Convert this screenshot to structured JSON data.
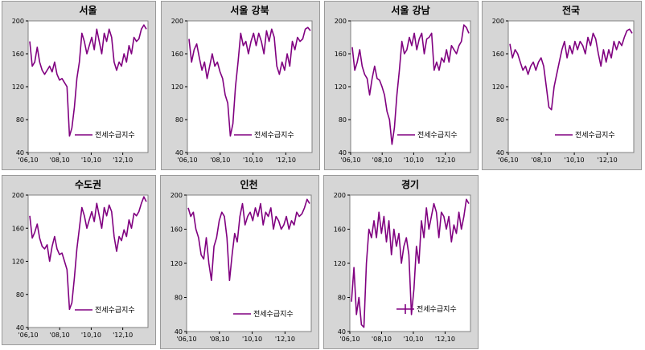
{
  "page": {
    "legend_label": "전세수급지수",
    "series_color": "#800080",
    "background_color": "#d6d6d6"
  },
  "chart_data": [
    {
      "type": "line",
      "title": "서울",
      "ylim": [
        40,
        200
      ],
      "yticks": [
        40,
        80,
        120,
        160,
        200
      ],
      "xticks": [
        "'06,10",
        "'08,10",
        "'10,10",
        "'12,10"
      ],
      "legend": "전세수급지수",
      "legend_marker": "line",
      "series": [
        {
          "name": "전세수급지수",
          "values": [
            175,
            145,
            150,
            168,
            150,
            140,
            135,
            140,
            145,
            138,
            150,
            135,
            128,
            130,
            125,
            120,
            60,
            70,
            95,
            130,
            150,
            185,
            175,
            160,
            170,
            180,
            165,
            190,
            175,
            160,
            185,
            175,
            190,
            180,
            150,
            140,
            150,
            145,
            160,
            150,
            170,
            160,
            180,
            175,
            178,
            190,
            195,
            190
          ]
        }
      ]
    },
    {
      "type": "line",
      "title": "서울 강북",
      "ylim": [
        40,
        200
      ],
      "yticks": [
        40,
        80,
        120,
        160,
        200
      ],
      "xticks": [
        "'06,10",
        "'08,10",
        "'10,10",
        "'12,10"
      ],
      "legend": "전세수급지수",
      "legend_marker": "line",
      "series": [
        {
          "name": "전세수급지수",
          "values": [
            178,
            150,
            165,
            172,
            155,
            140,
            150,
            130,
            145,
            160,
            145,
            150,
            138,
            130,
            110,
            100,
            60,
            75,
            120,
            150,
            185,
            170,
            175,
            160,
            175,
            185,
            170,
            185,
            175,
            160,
            188,
            175,
            190,
            180,
            145,
            135,
            150,
            140,
            160,
            145,
            175,
            165,
            180,
            175,
            178,
            190,
            192,
            188
          ]
        }
      ]
    },
    {
      "type": "line",
      "title": "서울 강남",
      "ylim": [
        40,
        200
      ],
      "yticks": [
        40,
        80,
        120,
        160,
        200
      ],
      "xticks": [
        "'06,10",
        "'08,10",
        "'10,10",
        "'12,10"
      ],
      "legend": "전세수급지수",
      "legend_marker": "line",
      "series": [
        {
          "name": "전세수급지수",
          "values": [
            168,
            140,
            150,
            165,
            145,
            135,
            130,
            110,
            130,
            145,
            130,
            128,
            120,
            110,
            90,
            80,
            50,
            70,
            110,
            140,
            175,
            160,
            165,
            180,
            170,
            185,
            165,
            178,
            185,
            160,
            178,
            180,
            185,
            140,
            150,
            140,
            155,
            150,
            165,
            150,
            170,
            165,
            160,
            170,
            175,
            195,
            192,
            185
          ]
        }
      ]
    },
    {
      "type": "line",
      "title": "전국",
      "ylim": [
        40,
        200
      ],
      "yticks": [
        40,
        80,
        120,
        160,
        200
      ],
      "xticks": [
        "'06,10",
        "'08,10",
        "'10,10",
        "'12,10"
      ],
      "legend": "전세수급지수",
      "legend_marker": "line",
      "series": [
        {
          "name": "전세수급지수",
          "values": [
            172,
            155,
            165,
            160,
            150,
            140,
            145,
            135,
            145,
            150,
            140,
            150,
            155,
            145,
            120,
            95,
            92,
            120,
            135,
            150,
            165,
            175,
            155,
            170,
            160,
            175,
            165,
            175,
            170,
            160,
            180,
            170,
            185,
            178,
            160,
            145,
            165,
            150,
            165,
            155,
            175,
            165,
            175,
            170,
            180,
            188,
            190,
            185
          ]
        }
      ]
    },
    {
      "type": "line",
      "title": "수도권",
      "ylim": [
        40,
        200
      ],
      "yticks": [
        40,
        80,
        120,
        160,
        200
      ],
      "xticks": [
        "'06,10",
        "'08,10",
        "'10,10",
        "'12,10"
      ],
      "legend": "전세수급지수",
      "legend_marker": "line",
      "series": [
        {
          "name": "전세수급지수",
          "values": [
            175,
            148,
            155,
            165,
            148,
            138,
            135,
            140,
            120,
            138,
            150,
            135,
            128,
            130,
            120,
            110,
            62,
            70,
            100,
            135,
            160,
            185,
            175,
            160,
            170,
            180,
            168,
            190,
            175,
            160,
            185,
            175,
            188,
            180,
            150,
            132,
            150,
            145,
            158,
            150,
            170,
            160,
            178,
            175,
            180,
            190,
            198,
            192
          ]
        }
      ]
    },
    {
      "type": "line",
      "title": "인천",
      "ylim": [
        40,
        200
      ],
      "yticks": [
        40,
        80,
        120,
        160,
        200
      ],
      "xticks": [
        "'06,10",
        "'08,10",
        "'10,10",
        "'12,10"
      ],
      "legend": "전세수급지수",
      "legend_marker": "line",
      "series": [
        {
          "name": "전세수급지수",
          "values": [
            185,
            175,
            180,
            160,
            150,
            130,
            125,
            150,
            120,
            100,
            140,
            150,
            170,
            180,
            175,
            150,
            100,
            130,
            155,
            145,
            175,
            190,
            165,
            175,
            180,
            170,
            185,
            175,
            190,
            165,
            180,
            175,
            185,
            160,
            175,
            170,
            160,
            165,
            175,
            160,
            170,
            165,
            180,
            175,
            178,
            185,
            195,
            190
          ]
        }
      ]
    },
    {
      "type": "line",
      "title": "경기",
      "ylim": [
        40,
        200
      ],
      "yticks": [
        40,
        80,
        120,
        160,
        200
      ],
      "xticks": [
        "'06,10",
        "'08,10",
        "'10,10",
        "'12,10"
      ],
      "legend": "전세수급지수",
      "legend_marker": "plus",
      "series": [
        {
          "name": "전세수급지수",
          "values": [
            75,
            115,
            60,
            80,
            48,
            45,
            120,
            160,
            150,
            170,
            150,
            180,
            155,
            175,
            145,
            170,
            130,
            160,
            140,
            155,
            120,
            140,
            150,
            130,
            60,
            90,
            140,
            120,
            170,
            150,
            185,
            160,
            175,
            190,
            180,
            150,
            180,
            175,
            160,
            175,
            145,
            165,
            155,
            180,
            160,
            175,
            195,
            190
          ]
        }
      ]
    }
  ]
}
